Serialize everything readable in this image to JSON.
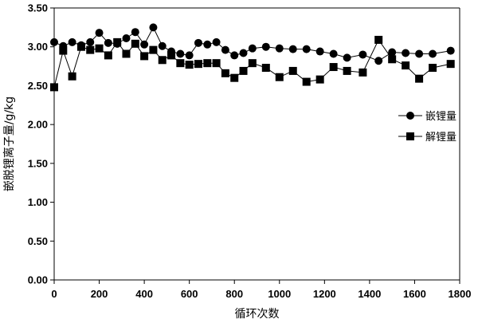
{
  "chart_data": {
    "type": "line",
    "title": "",
    "xlabel": "循环次数",
    "ylabel": "嵌脱锂离子量/g/kg",
    "xlim": [
      0,
      1800
    ],
    "ylim": [
      0,
      3.5
    ],
    "x_ticks": [
      "0",
      "200",
      "400",
      "600",
      "800",
      "1000",
      "1200",
      "1400",
      "1600",
      "1800"
    ],
    "y_ticks": [
      "0.00",
      "0.50",
      "1.00",
      "1.50",
      "2.00",
      "2.50",
      "3.00",
      "3.50"
    ],
    "grid": false,
    "legend_position": "right",
    "series": [
      {
        "name": "嵌锂量",
        "marker": "circle",
        "color": "#000000",
        "x": [
          0,
          40,
          80,
          120,
          160,
          200,
          240,
          280,
          320,
          360,
          400,
          440,
          480,
          520,
          560,
          600,
          640,
          680,
          720,
          760,
          800,
          840,
          880,
          940,
          1000,
          1060,
          1120,
          1180,
          1240,
          1300,
          1370,
          1440,
          1500,
          1560,
          1620,
          1680,
          1760
        ],
        "values": [
          3.06,
          3.01,
          3.06,
          3.02,
          3.06,
          3.18,
          3.05,
          3.04,
          3.11,
          3.19,
          3.03,
          3.25,
          3.01,
          2.94,
          2.91,
          2.89,
          3.05,
          3.03,
          3.06,
          2.96,
          2.89,
          2.92,
          2.98,
          3.0,
          2.98,
          2.97,
          2.97,
          2.94,
          2.91,
          2.86,
          2.9,
          2.82,
          2.93,
          2.92,
          2.91,
          2.91,
          2.95
        ]
      },
      {
        "name": "解锂量",
        "marker": "square",
        "color": "#000000",
        "x": [
          0,
          40,
          80,
          120,
          160,
          200,
          240,
          280,
          320,
          360,
          400,
          440,
          480,
          520,
          560,
          600,
          640,
          680,
          720,
          760,
          800,
          840,
          880,
          940,
          1000,
          1060,
          1120,
          1180,
          1240,
          1300,
          1370,
          1440,
          1500,
          1560,
          1620,
          1680,
          1760
        ],
        "values": [
          2.48,
          2.95,
          2.62,
          3.0,
          2.96,
          2.98,
          2.89,
          3.06,
          2.91,
          3.04,
          2.88,
          2.96,
          2.83,
          2.89,
          2.79,
          2.77,
          2.78,
          2.79,
          2.79,
          2.66,
          2.6,
          2.69,
          2.79,
          2.73,
          2.61,
          2.69,
          2.55,
          2.58,
          2.74,
          2.69,
          2.67,
          3.09,
          2.84,
          2.76,
          2.59,
          2.73,
          2.78
        ]
      }
    ]
  }
}
